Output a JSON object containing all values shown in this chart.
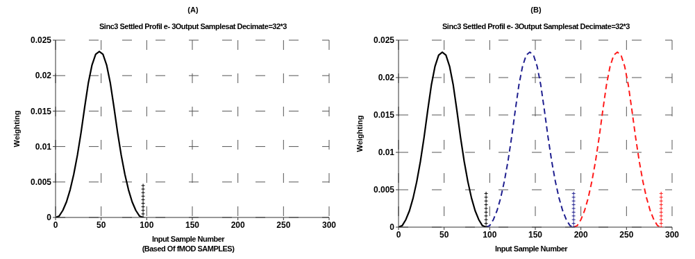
{
  "chart_data": [
    {
      "type": "line",
      "title": "(A)",
      "subtitle": "Sinc3 Settled Profil e- 3Output Samplesat Decimate=32*3",
      "xlabel": "Input Sample Number\n(Based Of fMOD SAMPLES)",
      "ylabel": "Weighting",
      "xlim": [
        0,
        300
      ],
      "xticks": [
        0,
        50,
        100,
        150,
        200,
        250,
        300
      ],
      "ylim": [
        0,
        0.025
      ],
      "yticks": [
        0,
        0.005,
        0.01,
        0.015,
        0.02,
        0.025
      ],
      "grid": true,
      "series": [
        {
          "color": "#000000",
          "line_style": "solid",
          "marker": "none",
          "x": [
            0,
            4,
            8,
            12,
            16,
            20,
            24,
            28,
            32,
            36,
            40,
            44,
            48,
            52,
            56,
            60,
            64,
            68,
            72,
            76,
            80,
            84,
            88,
            92,
            96
          ],
          "values": [
            0,
            0.0002,
            0.001,
            0.0022,
            0.0039,
            0.0061,
            0.0088,
            0.012,
            0.0156,
            0.019,
            0.0215,
            0.023,
            0.0234,
            0.023,
            0.0215,
            0.019,
            0.0156,
            0.012,
            0.0088,
            0.0061,
            0.0039,
            0.0022,
            0.001,
            0.0002,
            0
          ]
        },
        {
          "type": "scatter",
          "color": "#000000",
          "marker": "cross",
          "x": [
            96,
            96,
            96,
            96,
            96,
            96,
            96,
            96,
            96,
            96
          ],
          "values": [
            0,
            0.0005,
            0.001,
            0.0015,
            0.002,
            0.0025,
            0.003,
            0.0035,
            0.004,
            0.0045
          ]
        }
      ]
    },
    {
      "type": "line",
      "title": "(B)",
      "subtitle": "Sinc3 Settled Profil e- 3Output Samplesat Decimate=32*3",
      "xlabel": "Input Sample Number",
      "ylabel": "Weighting",
      "xlim": [
        0,
        300
      ],
      "xticks": [
        0,
        50,
        100,
        150,
        200,
        250,
        300
      ],
      "ylim": [
        0,
        0.025
      ],
      "yticks": [
        0,
        0.005,
        0.01,
        0.015,
        0.02,
        0.025
      ],
      "grid": true,
      "series": [
        {
          "color": "#000000",
          "line_style": "solid",
          "marker": "none",
          "x": [
            0,
            4,
            8,
            12,
            16,
            20,
            24,
            28,
            32,
            36,
            40,
            44,
            48,
            52,
            56,
            60,
            64,
            68,
            72,
            76,
            80,
            84,
            88,
            92,
            96
          ],
          "values": [
            0,
            0.0002,
            0.001,
            0.0022,
            0.0039,
            0.0061,
            0.0088,
            0.012,
            0.0156,
            0.019,
            0.0215,
            0.023,
            0.0234,
            0.023,
            0.0215,
            0.019,
            0.0156,
            0.012,
            0.0088,
            0.0061,
            0.0039,
            0.0022,
            0.001,
            0.0002,
            0
          ]
        },
        {
          "type": "scatter",
          "color": "#000000",
          "marker": "cross",
          "x": [
            96,
            96,
            96,
            96,
            96,
            96,
            96,
            96,
            96,
            96
          ],
          "values": [
            0,
            0.0005,
            0.001,
            0.0015,
            0.002,
            0.0025,
            0.003,
            0.0035,
            0.004,
            0.0045
          ]
        },
        {
          "color": "#1f1f8f",
          "line_style": "dashed",
          "marker": "none",
          "x": [
            96,
            100,
            104,
            108,
            112,
            116,
            120,
            124,
            128,
            132,
            136,
            140,
            144,
            148,
            152,
            156,
            160,
            164,
            168,
            172,
            176,
            180,
            184,
            188,
            192
          ],
          "values": [
            0,
            0.0002,
            0.001,
            0.0022,
            0.0039,
            0.0061,
            0.0088,
            0.012,
            0.0156,
            0.019,
            0.0215,
            0.023,
            0.0234,
            0.023,
            0.0215,
            0.019,
            0.0156,
            0.012,
            0.0088,
            0.0061,
            0.0039,
            0.0022,
            0.001,
            0.0002,
            0
          ]
        },
        {
          "type": "scatter",
          "color": "#1f1f8f",
          "marker": "cross",
          "x": [
            192,
            192,
            192,
            192,
            192,
            192,
            192,
            192,
            192,
            192
          ],
          "values": [
            0,
            0.0005,
            0.001,
            0.0015,
            0.002,
            0.0025,
            0.003,
            0.0035,
            0.004,
            0.0045
          ]
        },
        {
          "color": "#ff1a1a",
          "line_style": "dashed",
          "marker": "none",
          "x": [
            192,
            196,
            200,
            204,
            208,
            212,
            216,
            220,
            224,
            228,
            232,
            236,
            240,
            244,
            248,
            252,
            256,
            260,
            264,
            268,
            272,
            276,
            280,
            284,
            288
          ],
          "values": [
            0,
            0.0002,
            0.001,
            0.0022,
            0.0039,
            0.0061,
            0.0088,
            0.012,
            0.0156,
            0.019,
            0.0215,
            0.023,
            0.0234,
            0.023,
            0.0215,
            0.019,
            0.0156,
            0.012,
            0.0088,
            0.0061,
            0.0039,
            0.0022,
            0.001,
            0.0002,
            0
          ]
        },
        {
          "type": "scatter",
          "color": "#ff1a1a",
          "marker": "cross",
          "x": [
            288,
            288,
            288,
            288,
            288,
            288,
            288,
            288,
            288,
            288
          ],
          "values": [
            0,
            0.0005,
            0.001,
            0.0015,
            0.002,
            0.0025,
            0.003,
            0.0035,
            0.004,
            0.0045
          ]
        }
      ]
    }
  ]
}
